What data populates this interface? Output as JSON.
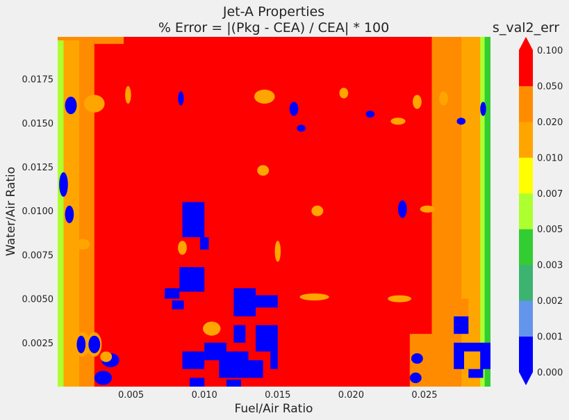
{
  "chart_data": {
    "type": "heatmap",
    "title": "Jet-A Properties",
    "subtitle": "% Error = |(Pkg - CEA) / CEA| * 100",
    "xlabel": "Fuel/Air Ratio",
    "ylabel": "Water/Air Ratio",
    "xlim": [
      0.0,
      0.0295
    ],
    "ylim": [
      0.0,
      0.0199
    ],
    "x_ticks": [
      0.005,
      0.01,
      0.015,
      0.02,
      0.025
    ],
    "x_tick_labels": [
      "0.005",
      "0.010",
      "0.015",
      "0.020",
      "0.025"
    ],
    "y_ticks": [
      0.0025,
      0.005,
      0.0075,
      0.01,
      0.0125,
      0.015,
      0.0175
    ],
    "y_tick_labels": [
      "0.0025",
      "0.0050",
      "0.0075",
      "0.0100",
      "0.0125",
      "0.0150",
      "0.0175"
    ],
    "colorbar": {
      "title": "s_val2_err",
      "levels": [
        0.0,
        0.001,
        0.002,
        0.003,
        0.005,
        0.007,
        0.01,
        0.02,
        0.05,
        0.1
      ],
      "level_labels": [
        "0.000",
        "0.001",
        "0.002",
        "0.003",
        "0.005",
        "0.007",
        "0.010",
        "0.020",
        "0.050",
        "0.100"
      ],
      "colors": [
        "#0000ff",
        "#6495ed",
        "#3cb371",
        "#32cd32",
        "#adff2f",
        "#ffff00",
        "#ffa500",
        "#ff8c00",
        "#ff0000"
      ],
      "extend": "both"
    },
    "background_color": "#ff0000",
    "regions": [
      {
        "shape": "rect",
        "x": [
          0.0,
          0.0015
        ],
        "y": [
          0.0,
          0.0199
        ],
        "level": "0.010-0.020"
      },
      {
        "shape": "rect",
        "x": [
          0.0015,
          0.0025
        ],
        "y": [
          0.0,
          0.0199
        ],
        "level": "0.020-0.050"
      },
      {
        "shape": "rect",
        "x": [
          0.0,
          0.0004
        ],
        "y": [
          0.0,
          0.0199
        ],
        "level": "0.005-0.007"
      },
      {
        "shape": "rect",
        "x": [
          0.0,
          0.0025
        ],
        "y": [
          0.0197,
          0.0199
        ],
        "level": "0.020-0.050"
      },
      {
        "shape": "rect",
        "x": [
          0.0025,
          0.0045
        ],
        "y": [
          0.0195,
          0.0199
        ],
        "level": "0.020-0.050"
      },
      {
        "shape": "rect",
        "x": [
          0.0255,
          0.0275
        ],
        "y": [
          0.0,
          0.0199
        ],
        "level": "0.020-0.050"
      },
      {
        "shape": "rect",
        "x": [
          0.0275,
          0.0293
        ],
        "y": [
          0.0,
          0.0199
        ],
        "level": "0.010-0.020"
      },
      {
        "shape": "rect",
        "x": [
          0.0288,
          0.0295
        ],
        "y": [
          0.0,
          0.0199
        ],
        "level": "0.005-0.007"
      },
      {
        "shape": "rect",
        "x": [
          0.0291,
          0.0295
        ],
        "y": [
          0.0,
          0.0199
        ],
        "level": "0.003-0.005"
      },
      {
        "shape": "rect",
        "x": [
          0.024,
          0.0256
        ],
        "y": [
          0.0,
          0.003
        ],
        "level": "0.020-0.050"
      },
      {
        "shape": "rect",
        "x": [
          0.0085,
          0.01
        ],
        "y": [
          0.0085,
          0.0105
        ],
        "level": "0.000-0.001"
      },
      {
        "shape": "rect",
        "x": [
          0.0097,
          0.0103
        ],
        "y": [
          0.0078,
          0.0085
        ],
        "level": "0.000-0.001"
      },
      {
        "shape": "rect",
        "x": [
          0.0083,
          0.01
        ],
        "y": [
          0.0054,
          0.0068
        ],
        "level": "0.000-0.001"
      },
      {
        "shape": "rect",
        "x": [
          0.0073,
          0.0083
        ],
        "y": [
          0.005,
          0.0056
        ],
        "level": "0.000-0.001"
      },
      {
        "shape": "rect",
        "x": [
          0.0078,
          0.0086
        ],
        "y": [
          0.0044,
          0.0049
        ],
        "level": "0.000-0.001"
      },
      {
        "shape": "rect",
        "x": [
          0.012,
          0.0135
        ],
        "y": [
          0.004,
          0.0056
        ],
        "level": "0.000-0.001"
      },
      {
        "shape": "rect",
        "x": [
          0.0135,
          0.015
        ],
        "y": [
          0.0045,
          0.0052
        ],
        "level": "0.000-0.001"
      },
      {
        "shape": "rect",
        "x": [
          0.012,
          0.0128
        ],
        "y": [
          0.0025,
          0.0035
        ],
        "level": "0.000-0.001"
      },
      {
        "shape": "rect",
        "x": [
          0.0135,
          0.015
        ],
        "y": [
          0.002,
          0.0035
        ],
        "level": "0.000-0.001"
      },
      {
        "shape": "rect",
        "x": [
          0.01,
          0.0115
        ],
        "y": [
          0.0015,
          0.0025
        ],
        "level": "0.000-0.001"
      },
      {
        "shape": "rect",
        "x": [
          0.011,
          0.013
        ],
        "y": [
          0.0005,
          0.002
        ],
        "level": "0.000-0.001"
      },
      {
        "shape": "rect",
        "x": [
          0.0085,
          0.01
        ],
        "y": [
          0.001,
          0.002
        ],
        "level": "0.000-0.001"
      },
      {
        "shape": "rect",
        "x": [
          0.013,
          0.014
        ],
        "y": [
          0.0005,
          0.0015
        ],
        "level": "0.000-0.001"
      },
      {
        "shape": "rect",
        "x": [
          0.009,
          0.01
        ],
        "y": [
          0.0,
          0.0005
        ],
        "level": "0.000-0.001"
      },
      {
        "shape": "rect",
        "x": [
          0.0115,
          0.0125
        ],
        "y": [
          0.0,
          0.0004
        ],
        "level": "0.000-0.001"
      },
      {
        "shape": "rect",
        "x": [
          0.0145,
          0.015
        ],
        "y": [
          0.001,
          0.002
        ],
        "level": "0.000-0.001"
      },
      {
        "shape": "rect",
        "x": [
          0.027,
          0.0295
        ],
        "y": [
          0.001,
          0.0025
        ],
        "level": "0.000-0.001"
      },
      {
        "shape": "rect",
        "x": [
          0.027,
          0.028
        ],
        "y": [
          0.003,
          0.004
        ],
        "level": "0.000-0.001"
      },
      {
        "shape": "rect",
        "x": [
          0.028,
          0.029
        ],
        "y": [
          0.0005,
          0.0012
        ],
        "level": "0.000-0.001"
      },
      {
        "shape": "rect",
        "x": [
          0.027,
          0.028
        ],
        "y": [
          0.004,
          0.005
        ],
        "level": "0.020-0.050"
      },
      {
        "shape": "rect",
        "x": [
          0.0277,
          0.0288
        ],
        "y": [
          0.001,
          0.002
        ],
        "level": "0.010-0.020"
      },
      {
        "shape": "ellipse",
        "x": 0.0017,
        "y": 0.0024,
        "rx": 0.0005,
        "ry": 0.0007,
        "level": "0.010-0.020"
      },
      {
        "shape": "ellipse",
        "x": 0.0016,
        "y": 0.0024,
        "rx": 0.0003,
        "ry": 0.0005,
        "level": "0.000-0.001"
      },
      {
        "shape": "ellipse",
        "x": 0.0025,
        "y": 0.0024,
        "rx": 0.0005,
        "ry": 0.0007,
        "level": "0.010-0.020"
      },
      {
        "shape": "ellipse",
        "x": 0.0025,
        "y": 0.0024,
        "rx": 0.0004,
        "ry": 0.0005,
        "level": "0.000-0.001"
      },
      {
        "shape": "ellipse",
        "x": 0.0036,
        "y": 0.0015,
        "rx": 0.0006,
        "ry": 0.0004,
        "level": "0.000-0.001"
      },
      {
        "shape": "ellipse",
        "x": 0.0031,
        "y": 0.0005,
        "rx": 0.0006,
        "ry": 0.0004,
        "level": "0.000-0.001"
      },
      {
        "shape": "ellipse",
        "x": 0.0025,
        "y": 0.0161,
        "rx": 0.0007,
        "ry": 0.0005,
        "level": "0.010-0.020"
      },
      {
        "shape": "ellipse",
        "x": 0.0009,
        "y": 0.016,
        "rx": 0.0004,
        "ry": 0.0005,
        "level": "0.000-0.001"
      },
      {
        "shape": "ellipse",
        "x": 0.0008,
        "y": 0.0098,
        "rx": 0.0003,
        "ry": 0.0005,
        "level": "0.000-0.001"
      },
      {
        "shape": "ellipse",
        "x": 0.0004,
        "y": 0.0115,
        "rx": 0.0003,
        "ry": 0.0007,
        "level": "0.000-0.001"
      },
      {
        "shape": "ellipse",
        "x": 0.0084,
        "y": 0.0164,
        "rx": 0.0002,
        "ry": 0.0004,
        "level": "0.000-0.001"
      },
      {
        "shape": "ellipse",
        "x": 0.0161,
        "y": 0.0158,
        "rx": 0.0003,
        "ry": 0.0004,
        "level": "0.000-0.001"
      },
      {
        "shape": "ellipse",
        "x": 0.0166,
        "y": 0.0147,
        "rx": 0.0003,
        "ry": 0.0002,
        "level": "0.000-0.001"
      },
      {
        "shape": "ellipse",
        "x": 0.0213,
        "y": 0.0155,
        "rx": 0.0003,
        "ry": 0.0002,
        "level": "0.000-0.001"
      },
      {
        "shape": "ellipse",
        "x": 0.0275,
        "y": 0.0151,
        "rx": 0.0003,
        "ry": 0.0002,
        "level": "0.000-0.001"
      },
      {
        "shape": "ellipse",
        "x": 0.0235,
        "y": 0.0101,
        "rx": 0.0003,
        "ry": 0.0005,
        "level": "0.000-0.001"
      },
      {
        "shape": "ellipse",
        "x": 0.029,
        "y": 0.0158,
        "rx": 0.0002,
        "ry": 0.0004,
        "level": "0.000-0.001"
      },
      {
        "shape": "ellipse",
        "x": 0.0245,
        "y": 0.0016,
        "rx": 0.0004,
        "ry": 0.0003,
        "level": "0.000-0.001"
      },
      {
        "shape": "ellipse",
        "x": 0.0244,
        "y": 0.0005,
        "rx": 0.0004,
        "ry": 0.0003,
        "level": "0.000-0.001"
      },
      {
        "shape": "ellipse",
        "x": 0.0033,
        "y": 0.0017,
        "rx": 0.0004,
        "ry": 0.0003,
        "level": "0.010-0.020"
      },
      {
        "shape": "ellipse",
        "x": 0.0105,
        "y": 0.0033,
        "rx": 0.0006,
        "ry": 0.0004,
        "level": "0.010-0.020"
      },
      {
        "shape": "ellipse",
        "x": 0.0175,
        "y": 0.0051,
        "rx": 0.001,
        "ry": 0.0002,
        "level": "0.010-0.020"
      },
      {
        "shape": "ellipse",
        "x": 0.0233,
        "y": 0.005,
        "rx": 0.0008,
        "ry": 0.0002,
        "level": "0.010-0.020"
      },
      {
        "shape": "ellipse",
        "x": 0.0252,
        "y": 0.0101,
        "rx": 0.0005,
        "ry": 0.0002,
        "level": "0.010-0.020"
      },
      {
        "shape": "ellipse",
        "x": 0.0177,
        "y": 0.01,
        "rx": 0.0004,
        "ry": 0.0003,
        "level": "0.010-0.020"
      },
      {
        "shape": "ellipse",
        "x": 0.0232,
        "y": 0.0151,
        "rx": 0.0005,
        "ry": 0.0002,
        "level": "0.010-0.020"
      },
      {
        "shape": "ellipse",
        "x": 0.0245,
        "y": 0.0162,
        "rx": 0.0003,
        "ry": 0.0004,
        "level": "0.010-0.020"
      },
      {
        "shape": "ellipse",
        "x": 0.0263,
        "y": 0.0164,
        "rx": 0.0003,
        "ry": 0.0004,
        "level": "0.010-0.020"
      },
      {
        "shape": "ellipse",
        "x": 0.0048,
        "y": 0.0166,
        "rx": 0.0002,
        "ry": 0.0005,
        "level": "0.010-0.020"
      },
      {
        "shape": "ellipse",
        "x": 0.0141,
        "y": 0.0165,
        "rx": 0.0007,
        "ry": 0.0004,
        "level": "0.010-0.020"
      },
      {
        "shape": "ellipse",
        "x": 0.0195,
        "y": 0.0167,
        "rx": 0.0003,
        "ry": 0.0003,
        "level": "0.010-0.020"
      },
      {
        "shape": "ellipse",
        "x": 0.015,
        "y": 0.0077,
        "rx": 0.0002,
        "ry": 0.0006,
        "level": "0.010-0.020"
      },
      {
        "shape": "ellipse",
        "x": 0.0085,
        "y": 0.0079,
        "rx": 0.0003,
        "ry": 0.0004,
        "level": "0.010-0.020"
      },
      {
        "shape": "ellipse",
        "x": 0.0017,
        "y": 0.0081,
        "rx": 0.0005,
        "ry": 0.0003,
        "level": "0.010-0.020"
      },
      {
        "shape": "ellipse",
        "x": 0.014,
        "y": 0.0123,
        "rx": 0.0004,
        "ry": 0.0003,
        "level": "0.010-0.020"
      }
    ]
  }
}
